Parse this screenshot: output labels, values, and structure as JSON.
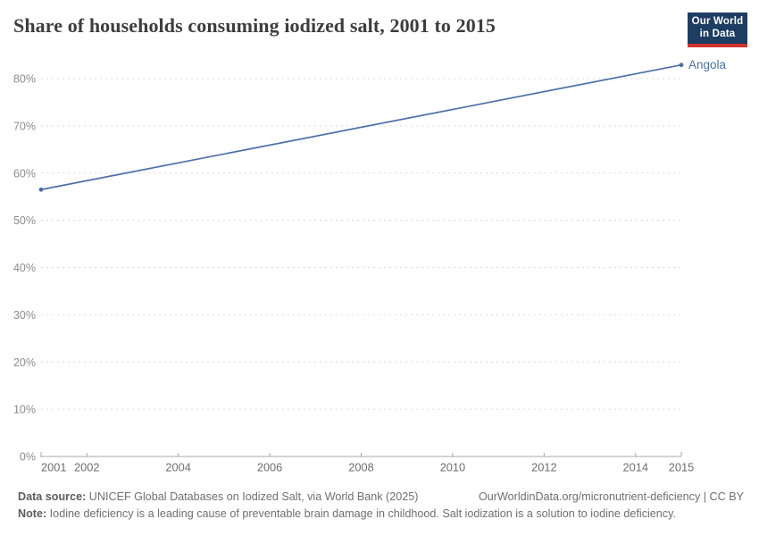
{
  "header": {
    "title": "Share of households consuming iodized salt, 2001 to 2015",
    "logo": {
      "line1": "Our World",
      "line2": "in Data",
      "bg_color": "#1d3d63",
      "accent_color": "#d0342c"
    }
  },
  "chart_data": {
    "type": "line",
    "title": "Share of households consuming iodized salt, 2001 to 2015",
    "xlabel": "",
    "ylabel": "",
    "xlim": [
      2001,
      2015
    ],
    "ylim": [
      0,
      80
    ],
    "grid": "horizontal-dashed",
    "legend_position": "end-of-line-label",
    "xticks": [
      2001,
      2002,
      2004,
      2006,
      2008,
      2010,
      2012,
      2014,
      2015
    ],
    "yticks": [
      0,
      10,
      20,
      30,
      40,
      50,
      60,
      70,
      80
    ],
    "ytick_suffix": "%",
    "series": [
      {
        "name": "Angola",
        "color": "#4c6ea8",
        "x": [
          2001,
          2015
        ],
        "values": [
          56.5,
          82.9
        ]
      }
    ]
  },
  "footer": {
    "source_label": "Data source:",
    "source_text": " UNICEF Global Databases on Iodized Salt, via World Bank (2025)",
    "link_text": "OurWorldinData.org/micronutrient-deficiency | CC BY",
    "note_label": "Note:",
    "note_text": " Iodine deficiency is a leading cause of preventable brain damage in childhood. Salt iodization is a solution to iodine deficiency."
  }
}
